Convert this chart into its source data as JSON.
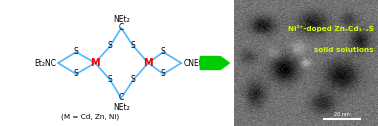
{
  "bg_color": "#ffffff",
  "arrow_color": "#00cc00",
  "M_color": "#ff0000",
  "bond_color": "#4db8ff",
  "text_color": "#000000",
  "label_color": "#ccff00",
  "title_line1": "Ni²⁺-doped ZnₓCd₁₋ₓS",
  "title_line2": "solid solutions",
  "scale_bar": "20 nm",
  "caption": "(M = Cd, Zn, Ni)"
}
